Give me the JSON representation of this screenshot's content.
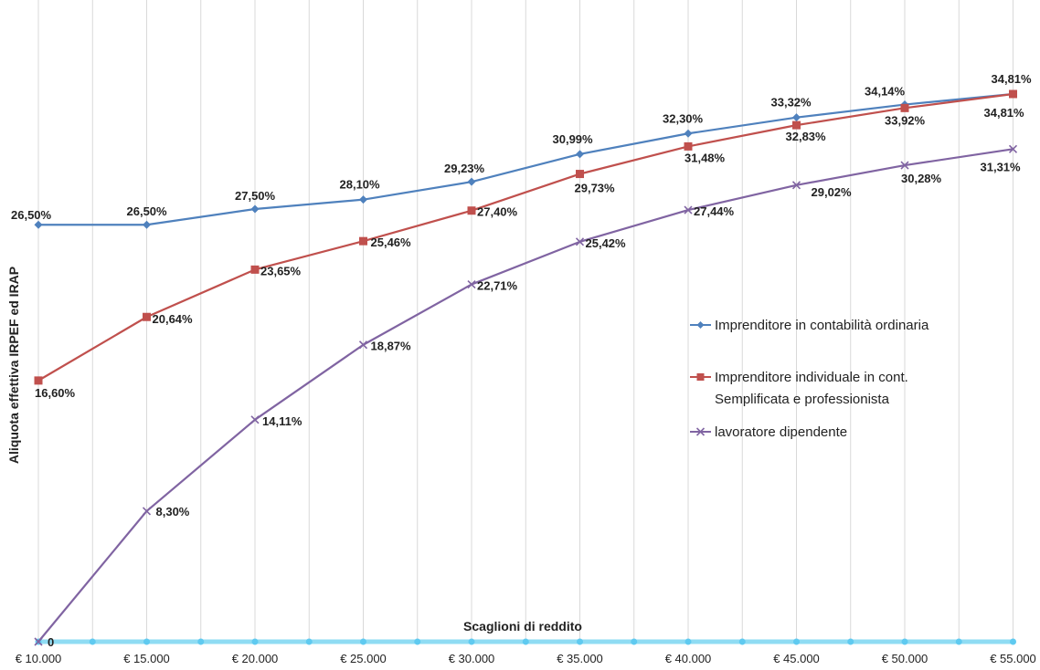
{
  "chart_data": {
    "type": "line",
    "title": "",
    "xlabel": "Scaglioni di reddito",
    "ylabel": "Aliquota effettiva IRPEF ed IRAP",
    "categories": [
      "€ 10.000",
      "€ 15.000",
      "€ 20.000",
      "€ 25.000",
      "€ 30.000",
      "€ 35.000",
      "€ 40.000",
      "€ 45.000",
      "€ 50.000",
      "€ 55.000"
    ],
    "ylim": [
      0,
      38
    ],
    "grid": "vertical",
    "legend_position": "right",
    "series": [
      {
        "name": "Imprenditore in contabilità  ordinaria",
        "color": "#4f81bd",
        "marker": "diamond",
        "values": [
          26.5,
          26.5,
          27.5,
          28.1,
          29.23,
          30.99,
          32.3,
          33.32,
          34.14,
          34.81
        ],
        "labels": [
          "26,50%",
          "26,50%",
          "27,50%",
          "28,10%",
          "29,23%",
          "30,99%",
          "32,30%",
          "33,32%",
          "34,14%",
          "34,81%"
        ]
      },
      {
        "name_line1": "Imprenditore  individuale  in  cont.",
        "name_line2": "Semplificata e professionista",
        "color": "#c0504d",
        "marker": "square",
        "values": [
          16.6,
          20.64,
          23.65,
          25.46,
          27.4,
          29.73,
          31.48,
          32.83,
          33.92,
          34.81
        ],
        "labels": [
          "16,60%",
          "20,64%",
          "23,65%",
          "25,46%",
          "27,40%",
          "29,73%",
          "31,48%",
          "32,83%",
          "33,92%",
          "34,81%"
        ]
      },
      {
        "name": "lavoratore dipendente",
        "color": "#8064a2",
        "marker": "x",
        "values": [
          0,
          8.3,
          14.11,
          18.87,
          22.71,
          25.42,
          27.44,
          29.02,
          30.28,
          31.31
        ],
        "labels": [
          "0",
          "8,30%",
          "14,11%",
          "18,87%",
          "22,71%",
          "25,42%",
          "27,44%",
          "29,02%",
          "30,28%",
          "31,31%"
        ]
      }
    ]
  }
}
